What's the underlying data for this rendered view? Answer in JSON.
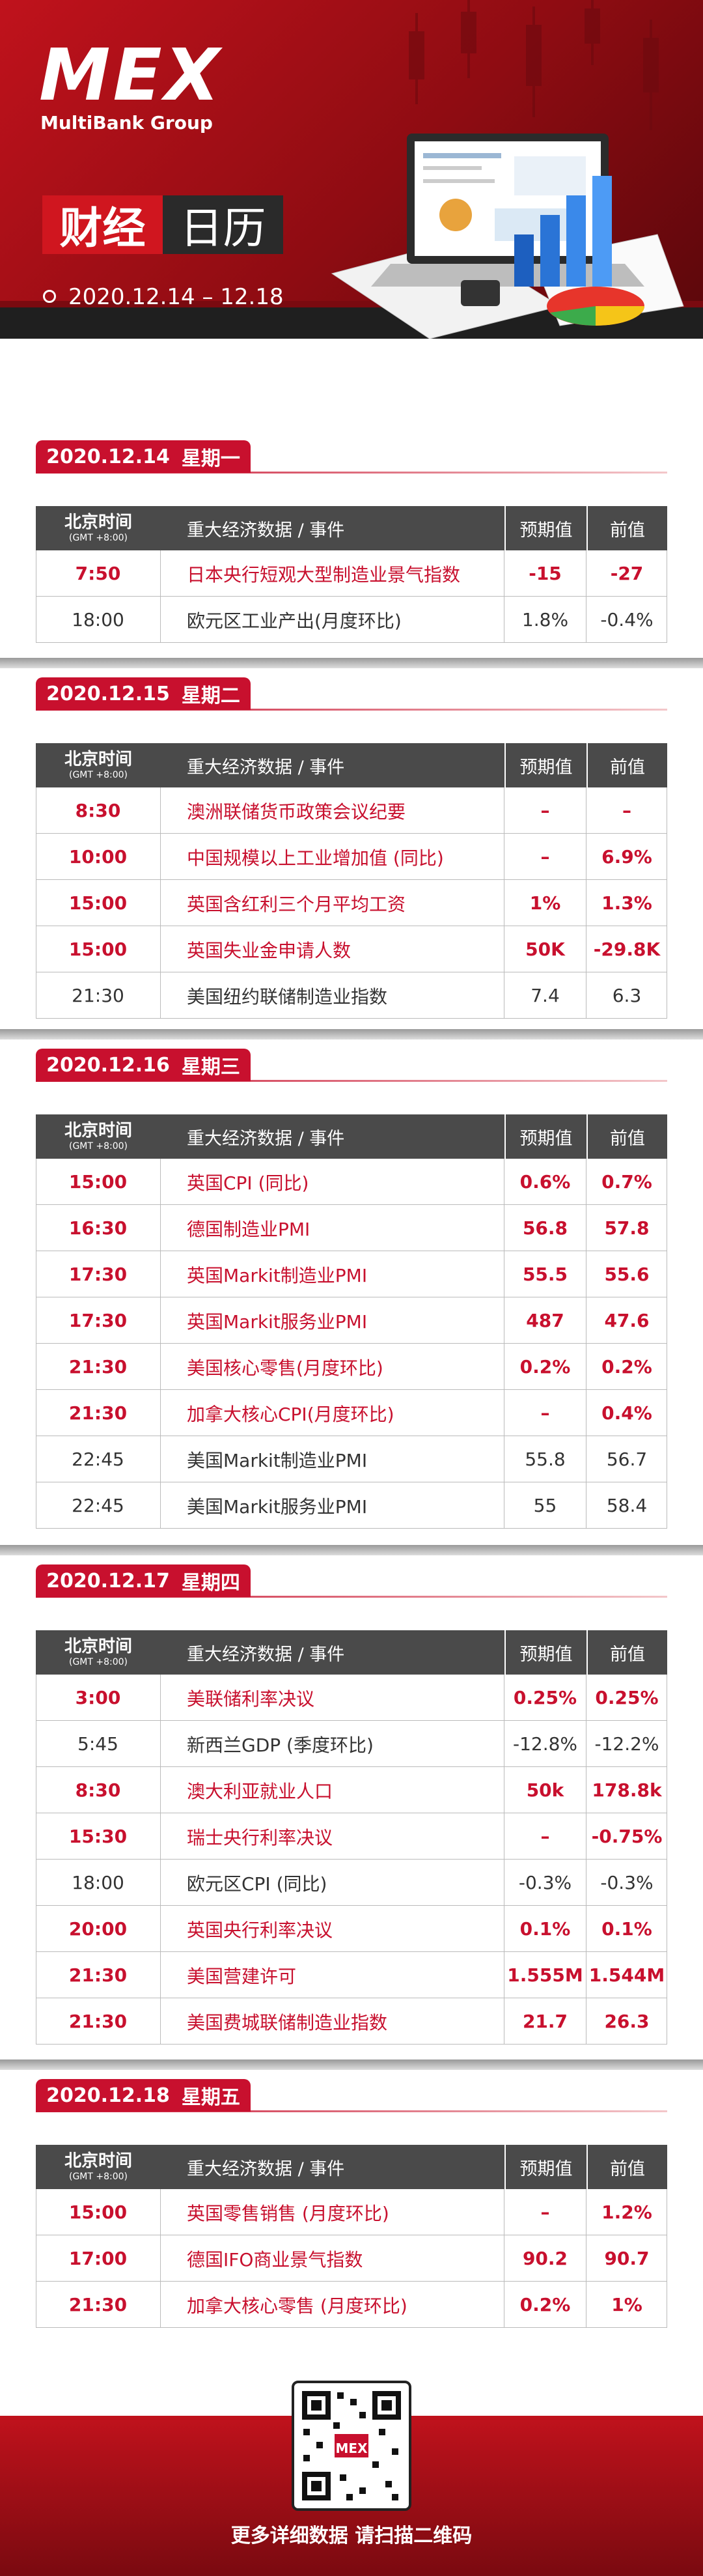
{
  "header": {
    "logo": "MEX",
    "brand": "MultiBank Group",
    "title_a": "财经",
    "title_b": "日历",
    "date_range": "2020.12.14 – 12.18"
  },
  "columns": {
    "time": "北京时间",
    "timezone": "(GMT +8:00)",
    "event": "重大经济数据 / 事件",
    "forecast": "预期值",
    "previous": "前值"
  },
  "days": [
    {
      "date": "2020.12.14",
      "weekday": "星期一",
      "rows": [
        {
          "time": "7:50",
          "event": "日本央行短观大型制造业景气指数",
          "forecast": "-15",
          "previous": "-27",
          "color": "#c8102e"
        },
        {
          "time": "18:00",
          "event": "欧元区工业产出(月度环比)",
          "forecast": "1.8%",
          "previous": "-0.4%",
          "color": "#333333"
        }
      ]
    },
    {
      "date": "2020.12.15",
      "weekday": "星期二",
      "rows": [
        {
          "time": "8:30",
          "event": "澳洲联储货币政策会议纪要",
          "forecast": "–",
          "previous": "–",
          "color": "#c8102e"
        },
        {
          "time": "10:00",
          "event": "中国规模以上工业增加值 (同比)",
          "forecast": "–",
          "previous": "6.9%",
          "color": "#c8102e"
        },
        {
          "time": "15:00",
          "event": "英国含红利三个月平均工资",
          "forecast": "1%",
          "previous": "1.3%",
          "color": "#c8102e"
        },
        {
          "time": "15:00",
          "event": "英国失业金申请人数",
          "forecast": "50K",
          "previous": "-29.8K",
          "color": "#c8102e"
        },
        {
          "time": "21:30",
          "event": "美国纽约联储制造业指数",
          "forecast": "7.4",
          "previous": "6.3",
          "color": "#333333"
        }
      ]
    },
    {
      "date": "2020.12.16",
      "weekday": "星期三",
      "rows": [
        {
          "time": "15:00",
          "event": "英国CPI (同比)",
          "forecast": "0.6%",
          "previous": "0.7%",
          "color": "#c8102e"
        },
        {
          "time": "16:30",
          "event": "德国制造业PMI",
          "forecast": "56.8",
          "previous": "57.8",
          "color": "#c8102e"
        },
        {
          "time": "17:30",
          "event": "英国Markit制造业PMI",
          "forecast": "55.5",
          "previous": "55.6",
          "color": "#c8102e"
        },
        {
          "time": "17:30",
          "event": "英国Markit服务业PMI",
          "forecast": "487",
          "previous": "47.6",
          "color": "#c8102e"
        },
        {
          "time": "21:30",
          "event": "美国核心零售(月度环比)",
          "forecast": "0.2%",
          "previous": "0.2%",
          "color": "#c8102e"
        },
        {
          "time": "21:30",
          "event": "加拿大核心CPI(月度环比)",
          "forecast": "–",
          "previous": "0.4%",
          "color": "#c8102e"
        },
        {
          "time": "22:45",
          "event": "美国Markit制造业PMI",
          "forecast": "55.8",
          "previous": "56.7",
          "color": "#333333"
        },
        {
          "time": "22:45",
          "event": "美国Markit服务业PMI",
          "forecast": "55",
          "previous": "58.4",
          "color": "#333333"
        }
      ]
    },
    {
      "date": "2020.12.17",
      "weekday": "星期四",
      "rows": [
        {
          "time": "3:00",
          "event": "美联储利率决议",
          "forecast": "0.25%",
          "previous": "0.25%",
          "color": "#c8102e"
        },
        {
          "time": "5:45",
          "event": "新西兰GDP (季度环比)",
          "forecast": "-12.8%",
          "previous": "-12.2%",
          "color": "#333333"
        },
        {
          "time": "8:30",
          "event": "澳大利亚就业人口",
          "forecast": "50k",
          "previous": "178.8k",
          "color": "#c8102e"
        },
        {
          "time": "15:30",
          "event": "瑞士央行利率决议",
          "forecast": "–",
          "previous": "-0.75%",
          "color": "#c8102e"
        },
        {
          "time": "18:00",
          "event": "欧元区CPI (同比)",
          "forecast": "-0.3%",
          "previous": "-0.3%",
          "color": "#333333"
        },
        {
          "time": "20:00",
          "event": "英国央行利率决议",
          "forecast": "0.1%",
          "previous": "0.1%",
          "color": "#c8102e"
        },
        {
          "time": "21:30",
          "event": "美国营建许可",
          "forecast": "1.555M",
          "previous": "1.544M",
          "color": "#c8102e"
        },
        {
          "time": "21:30",
          "event": "美国费城联储制造业指数",
          "forecast": "21.7",
          "previous": "26.3",
          "color": "#c8102e"
        }
      ]
    },
    {
      "date": "2020.12.18",
      "weekday": "星期五",
      "rows": [
        {
          "time": "15:00",
          "event": "英国零售销售 (月度环比)",
          "forecast": "–",
          "previous": "1.2%",
          "color": "#c8102e"
        },
        {
          "time": "17:00",
          "event": "德国IFO商业景气指数",
          "forecast": "90.2",
          "previous": "90.7",
          "color": "#c8102e"
        },
        {
          "time": "21:30",
          "event": "加拿大核心零售 (月度环比)",
          "forecast": "0.2%",
          "previous": "1%",
          "color": "#c8102e"
        }
      ]
    }
  ],
  "footer": {
    "cta": "更多详细数据 请扫描二维码"
  }
}
